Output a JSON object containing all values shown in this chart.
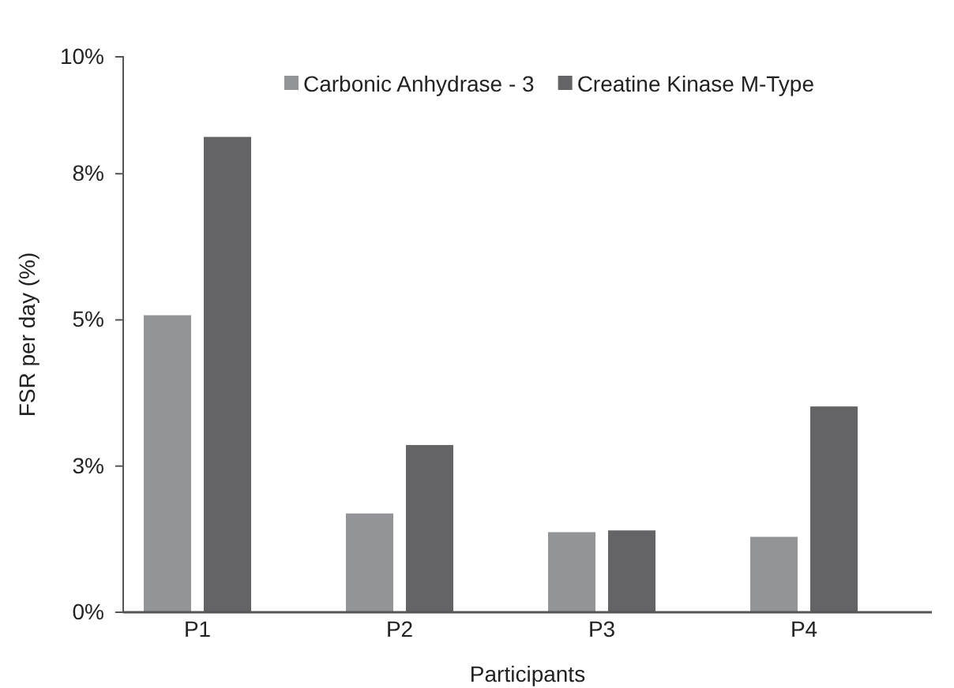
{
  "chart_data": {
    "type": "bar",
    "xlabel": "Participants",
    "ylabel": "FSR per day (%)",
    "categories": [
      "P1",
      "P2",
      "P3",
      "P4"
    ],
    "series": [
      {
        "name": "Carbonic Anhydrase - 3",
        "color": "#939497",
        "values": [
          5.08,
          1.69,
          1.37,
          1.29
        ]
      },
      {
        "name": "Creatine Kinase M-Type",
        "color": "#646466",
        "values": [
          8.13,
          2.86,
          1.4,
          3.52
        ]
      }
    ],
    "ylim": [
      0,
      9.5
    ],
    "yticks": [
      {
        "value": 0,
        "label": "0%"
      },
      {
        "value": 2.5,
        "label": "3%"
      },
      {
        "value": 5,
        "label": "5%"
      },
      {
        "value": 7.5,
        "label": "8%"
      },
      {
        "value": 9.5,
        "label": "10%"
      }
    ],
    "legend": "top",
    "grid": false
  }
}
